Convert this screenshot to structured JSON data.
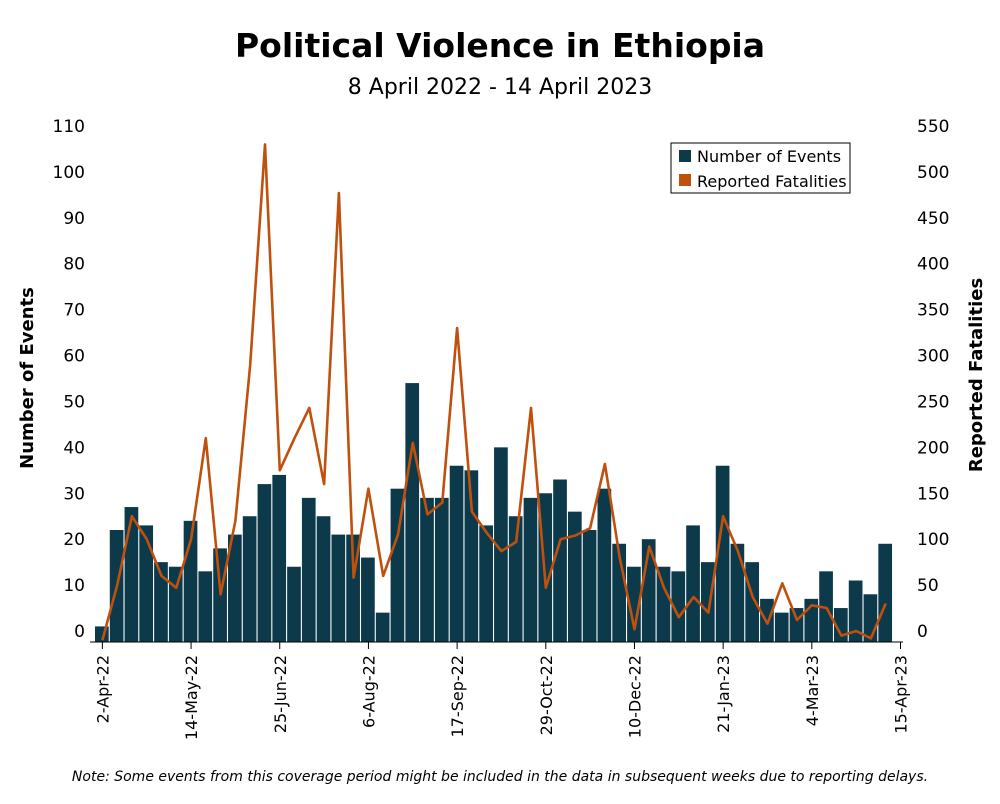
{
  "chart_data": {
    "type": "bar+line",
    "title": "Political Violence in Ethiopia",
    "subtitle": "8 April 2022 - 14 April 2023",
    "y_left_label": "Number of Events",
    "y_right_label": "Reported Fatalities",
    "y_left_ticks": [
      "0",
      "10",
      "20",
      "30",
      "40",
      "50",
      "60",
      "70",
      "80",
      "90",
      "100",
      "110"
    ],
    "y_right_ticks": [
      "0",
      "50",
      "100",
      "150",
      "200",
      "250",
      "300",
      "350",
      "400",
      "450",
      "500",
      "550"
    ],
    "y_left_range": [
      0,
      110
    ],
    "y_right_range": [
      0,
      550
    ],
    "x_tick_labels": [
      "2-Apr-22",
      "14-May-22",
      "25-Jun-22",
      "6-Aug-22",
      "17-Sep-22",
      "29-Oct-22",
      "10-Dec-22",
      "21-Jan-23",
      "4-Mar-23",
      "15-Apr-23"
    ],
    "x_tick_indices": [
      0,
      6,
      12,
      18,
      24,
      30,
      36,
      42,
      48,
      54
    ],
    "legend": {
      "position": "top-right",
      "items": [
        {
          "label": "Number of Events",
          "color": "#0d3a4a"
        },
        {
          "label": "Reported Fatalities",
          "color": "#c0500d"
        }
      ]
    },
    "series": [
      {
        "name": "Number of Events",
        "type": "bar",
        "color": "#0d3a4a",
        "values": [
          1,
          22,
          27,
          23,
          15,
          14,
          24,
          13,
          18,
          21,
          25,
          32,
          34,
          14,
          29,
          25,
          21,
          21,
          16,
          4,
          31,
          54,
          29,
          29,
          36,
          35,
          23,
          40,
          25,
          29,
          30,
          33,
          26,
          22,
          31,
          19,
          14,
          20,
          14,
          13,
          23,
          15,
          36,
          19,
          15,
          7,
          4,
          5,
          7,
          13,
          5,
          11,
          8,
          19
        ]
      },
      {
        "name": "Reported Fatalities",
        "type": "line",
        "color": "#c0500d",
        "values": [
          -10,
          50,
          125,
          100,
          60,
          47,
          100,
          210,
          40,
          120,
          290,
          530,
          175,
          210,
          243,
          160,
          477,
          58,
          155,
          60,
          105,
          205,
          127,
          140,
          330,
          130,
          107,
          87,
          97,
          243,
          47,
          100,
          104,
          112,
          182,
          80,
          2,
          92,
          47,
          15,
          37,
          20,
          125,
          87,
          37,
          8,
          52,
          12,
          28,
          25,
          -5,
          0,
          -8,
          30
        ]
      }
    ]
  },
  "note": "Note: Some events from this coverage period might be included in the data in subsequent weeks due to reporting delays."
}
